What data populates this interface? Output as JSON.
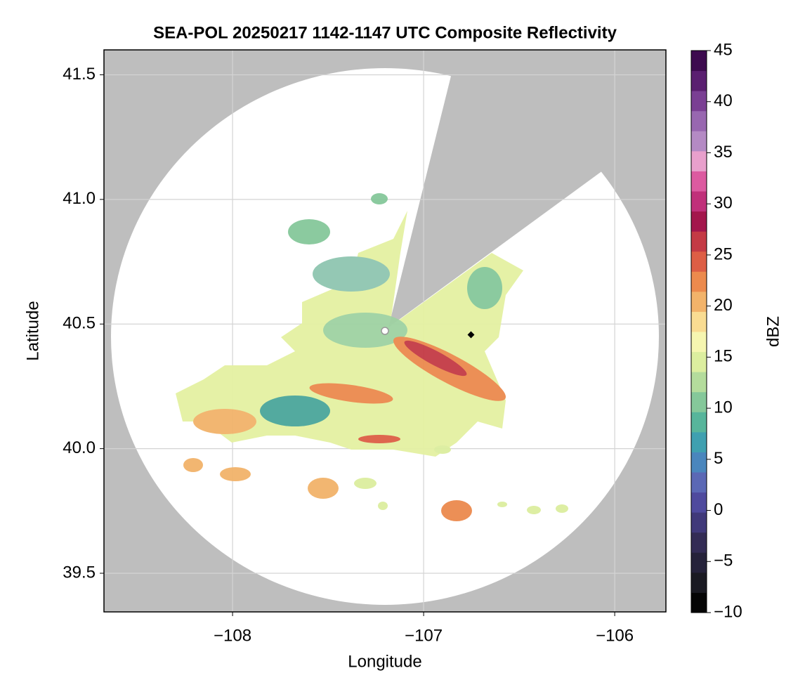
{
  "chart_data": {
    "type": "radar-map",
    "title": "SEA-POL 20250217 1142-1147 UTC Composite Reflectivity",
    "xlabel": "Longitude",
    "ylabel": "Latitude",
    "xlim": [
      -108.673,
      -105.732
    ],
    "ylim": [
      39.345,
      41.6
    ],
    "xticks": [
      {
        "value": -108,
        "label": "−108"
      },
      {
        "value": -107,
        "label": "−107"
      },
      {
        "value": -106,
        "label": "−106"
      }
    ],
    "yticks": [
      39.5,
      {
        "value": 40.0,
        "label": "40.0"
      },
      40.5,
      {
        "value": 41.0,
        "label": "41.0"
      },
      41.5
    ],
    "grid": true,
    "colorbar": {
      "label": "dBZ",
      "range": [
        -10,
        45
      ],
      "ticks": [
        {
          "value": -10,
          "label": "−10"
        },
        {
          "value": -5,
          "label": "−5"
        },
        0,
        5,
        10,
        15,
        20,
        25,
        30,
        35,
        40,
        45
      ],
      "colors": [
        "#050505",
        "#1a1a22",
        "#25223a",
        "#332c55",
        "#40397a",
        "#4f4a9e",
        "#5b68b5",
        "#4a86bd",
        "#3fa0b0",
        "#57b59b",
        "#85c89a",
        "#b4dc9c",
        "#dcee9f",
        "#f6f6b0",
        "#f9dc92",
        "#f2b36a",
        "#ec8a4d",
        "#dd5e45",
        "#c43a45",
        "#a3164c",
        "#c0307a",
        "#dc5aa0",
        "#e8a0cc",
        "#b48ac4",
        "#9867b0",
        "#7a3f93",
        "#5a1f70",
        "#3d0b4f"
      ]
    }
  }
}
